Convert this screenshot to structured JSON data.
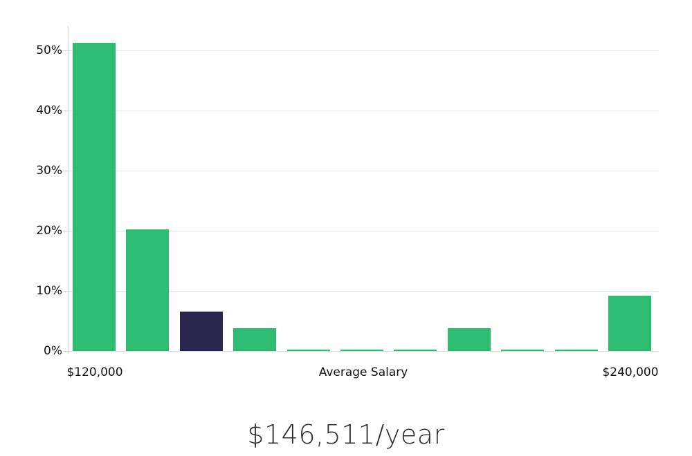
{
  "page": {
    "background": "#ffffff"
  },
  "chart_data": {
    "type": "bar",
    "title": "",
    "description": "salary distribution histogram with highlighted bin",
    "y_axis": {
      "tick_labels": [
        "0%",
        "10%",
        "20%",
        "30%",
        "40%",
        "50%"
      ],
      "tick_values": [
        0,
        10,
        20,
        30,
        40,
        50
      ],
      "max": 54,
      "unit": "%"
    },
    "x_axis": {
      "left_label": "$120,000",
      "title": "Average Salary",
      "right_label": "$240,000"
    },
    "values": [
      51.2,
      20.2,
      6.6,
      3.8,
      0.25,
      0.25,
      0.25,
      3.8,
      0.25,
      0.25,
      9.2
    ],
    "highlight_index": 2,
    "grid": true,
    "legend_position": "none",
    "colors": {
      "bar": "#2dbc71",
      "highlight_bar": "#29254c",
      "gridline": "#e5e5e5",
      "baseline": "#d9d9d9",
      "axis_line": "#d6d6d6",
      "tick": "#cfcfcf",
      "label": "#111111"
    }
  },
  "caption": {
    "text": "$146,511/year",
    "color": "#2e2e2e"
  }
}
